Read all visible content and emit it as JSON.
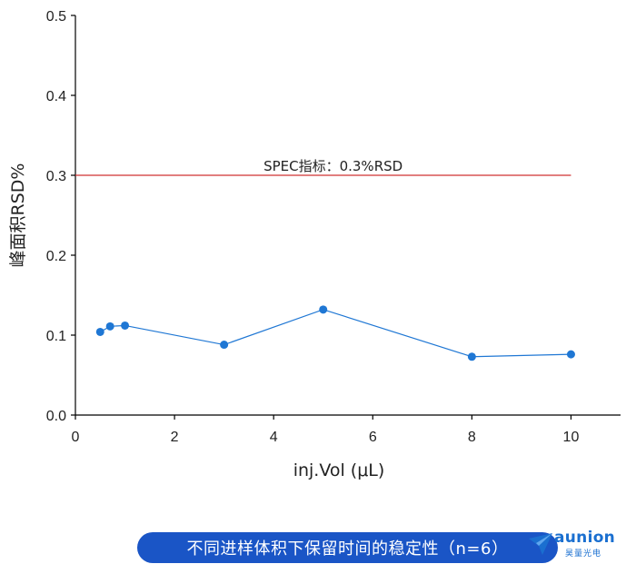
{
  "chart_data": {
    "type": "line",
    "title": "",
    "xlabel": "inj.Vol (μL)",
    "ylabel": "峰面积RSD%",
    "xlim": [
      0,
      11
    ],
    "ylim": [
      0.0,
      0.5
    ],
    "x_ticks": [
      0,
      2,
      4,
      6,
      8,
      10
    ],
    "x_tick_labels": [
      "0",
      "2",
      "4",
      "6",
      "8",
      "10"
    ],
    "y_ticks": [
      0.0,
      0.1,
      0.2,
      0.3,
      0.4,
      0.5
    ],
    "y_tick_labels": [
      "0.0",
      "0.1",
      "0.2",
      "0.3",
      "0.4",
      "0.5"
    ],
    "grid": false,
    "legend": "none",
    "series": [
      {
        "x": [
          0.5,
          0.7,
          1,
          3,
          5,
          8,
          10
        ],
        "values": [
          0.104,
          0.111,
          0.112,
          0.088,
          0.132,
          0.073,
          0.076
        ],
        "color": "#1f77d4"
      }
    ],
    "reference_line": {
      "y": 0.3,
      "label": "SPEC指标：0.3%RSD",
      "color": "#d03030"
    }
  },
  "caption": {
    "text": "不同进样体积下保留时间的稳定性（n=6）",
    "background": "#1a55c6"
  },
  "logo": {
    "name": "aunion",
    "subtitle": "昊量光电",
    "color": "#1a6fd0",
    "icon": "paper-plane-logo-icon"
  }
}
